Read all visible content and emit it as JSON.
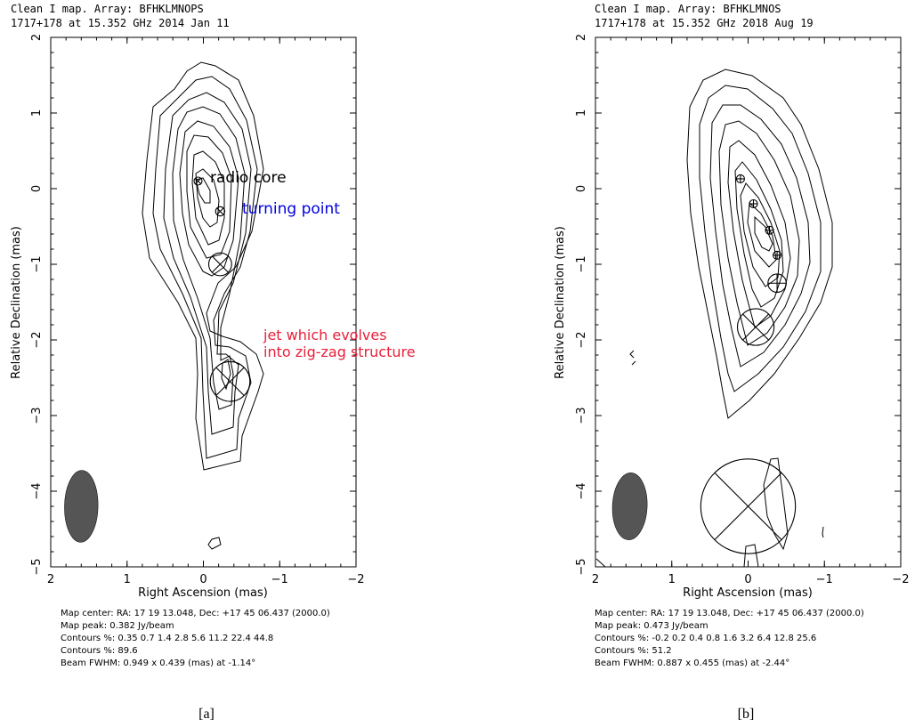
{
  "colors": {
    "ink": "#000000",
    "beam_fill": "#555555",
    "annotation_blue": "#0000dd",
    "annotation_red": "#e8203a"
  },
  "panels": [
    {
      "header_line1": "Clean I map.  Array:  BFHKLMNOPS",
      "header_line2": "1717+178 at 15.352 GHz 2014 Jan 11",
      "panel_label": "[a]",
      "footer": [
        "Map center:  RA: 17 19 13.048,  Dec: +17 45 06.437 (2000.0)",
        "Map peak: 0.382 Jy/beam",
        "Contours %: 0.35 0.7 1.4 2.8 5.6 11.2 22.4 44.8",
        "Contours %: 89.6",
        "Beam FWHM: 0.949 x 0.439 (mas) at -1.14°"
      ],
      "annotations": [
        {
          "text": "radio core",
          "color": "ink"
        },
        {
          "text": "turning point",
          "color": "annotation_blue"
        },
        {
          "text": "jet which evolves",
          "color": "annotation_red"
        },
        {
          "text": "into zig-zag structure",
          "color": "annotation_red"
        }
      ]
    },
    {
      "header_line1": "Clean I map.  Array:  BFHKLMNOS",
      "header_line2": "1717+178 at 15.352 GHz 2018 Aug 19",
      "panel_label": "[b]",
      "footer": [
        "Map center:  RA: 17 19 13.048,  Dec: +17 45 06.437 (2000.0)",
        "Map peak: 0.473 Jy/beam",
        "Contours %: -0.2 0.2 0.4 0.8 1.6 3.2 6.4 12.8 25.6",
        "Contours %: 51.2",
        "Beam FWHM: 0.887 x 0.455 (mas) at -2.44°"
      ],
      "annotations": []
    }
  ],
  "chart_data": [
    {
      "type": "contour",
      "xlabel": "Right Ascension   (mas)",
      "ylabel": "Relative Declination   (mas)",
      "xlim": [
        2,
        -2
      ],
      "ylim": [
        -5,
        2
      ],
      "xticks": [
        "2",
        "1",
        "0",
        "−1",
        "−2"
      ],
      "yticks": [
        "−5",
        "−4",
        "−3",
        "−2",
        "−1",
        "0",
        "1",
        "2"
      ],
      "contour_levels_percent": [
        0.35,
        0.7,
        1.4,
        2.8,
        5.6,
        11.2,
        22.4,
        44.8,
        89.6
      ],
      "beam": {
        "major_mas": 0.949,
        "minor_mas": 0.439,
        "pa_deg": -1.14,
        "center": [
          1.6,
          -4.2
        ]
      },
      "components": [
        {
          "x": 0.07,
          "y": 0.1,
          "r": 0.05,
          "mark": "x"
        },
        {
          "x": -0.22,
          "y": -0.3,
          "r": 0.06,
          "mark": "x"
        },
        {
          "x": -0.22,
          "y": -1.0,
          "r": 0.15,
          "mark": "x"
        },
        {
          "x": -0.35,
          "y": -2.55,
          "r": 0.26,
          "mark": "x"
        }
      ]
    },
    {
      "type": "contour",
      "xlabel": "Right Ascension   (mas)",
      "ylabel": "Relative Declination   (mas)",
      "xlim": [
        2,
        -2
      ],
      "ylim": [
        -5,
        2
      ],
      "xticks": [
        "2",
        "1",
        "0",
        "−1",
        "−2"
      ],
      "yticks": [
        "−5",
        "−4",
        "−3",
        "−2",
        "−1",
        "0",
        "1",
        "2"
      ],
      "contour_levels_percent": [
        -0.2,
        0.2,
        0.4,
        0.8,
        1.6,
        3.2,
        6.4,
        12.8,
        25.6,
        51.2
      ],
      "beam": {
        "major_mas": 0.887,
        "minor_mas": 0.455,
        "pa_deg": -2.44,
        "center": [
          1.55,
          -4.2
        ]
      },
      "components": [
        {
          "x": 0.1,
          "y": 0.13,
          "r": 0.05,
          "mark": "+"
        },
        {
          "x": -0.07,
          "y": -0.2,
          "r": 0.05,
          "mark": "+"
        },
        {
          "x": -0.28,
          "y": -0.55,
          "r": 0.05,
          "mark": "+"
        },
        {
          "x": -0.38,
          "y": -0.88,
          "r": 0.05,
          "mark": "+"
        },
        {
          "x": -0.38,
          "y": -1.25,
          "r": 0.12,
          "mark": "+"
        },
        {
          "x": -0.1,
          "y": -1.83,
          "r": 0.24,
          "mark": "x"
        },
        {
          "x": 0.0,
          "y": -4.2,
          "r": 0.62,
          "mark": "x"
        }
      ]
    }
  ]
}
